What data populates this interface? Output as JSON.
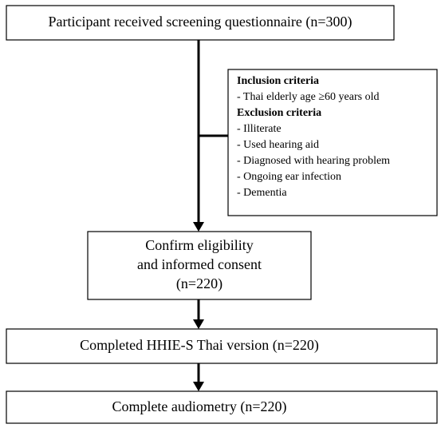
{
  "nodes": [
    {
      "lines": [
        "Participant received screening questionnaire (n=300)"
      ]
    },
    {
      "lines": [
        "Confirm eligibility",
        "and informed consent",
        "(n=220)"
      ]
    },
    {
      "lines": [
        "Completed HHIE-S Thai version (n=220)"
      ]
    },
    {
      "lines": [
        "Complete audiometry (n=220)"
      ]
    }
  ],
  "criteria": {
    "inclusion": {
      "heading": "Inclusion criteria",
      "items": [
        "- Thai elderly age ≥60 years old"
      ]
    },
    "exclusion": {
      "heading": "Exclusion criteria",
      "items": [
        "- Illiterate",
        "- Used hearing aid",
        "- Diagnosed with hearing problem",
        "- Ongoing ear infection",
        "- Dementia"
      ]
    }
  }
}
